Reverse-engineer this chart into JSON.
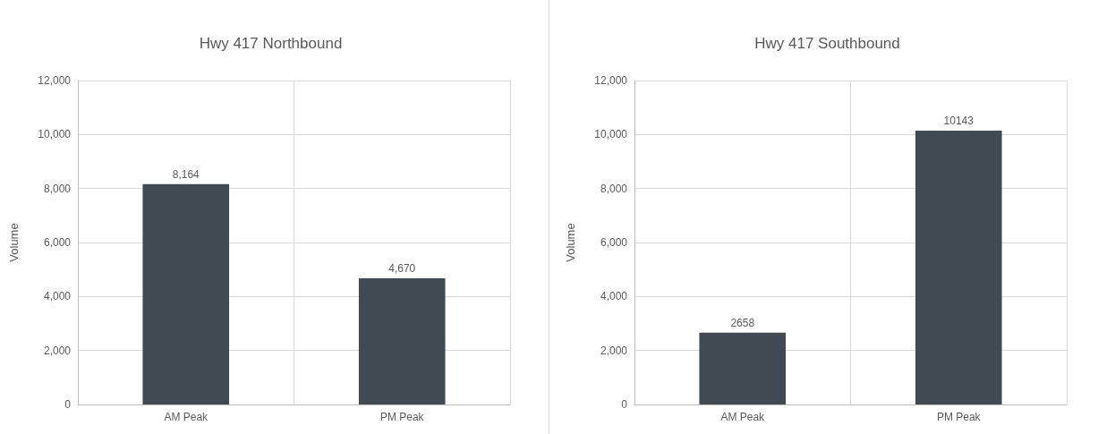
{
  "chart_data": [
    {
      "type": "bar",
      "title": "Hwy 417 Northbound",
      "ylabel": "Volume",
      "categories": [
        "AM Peak",
        "PM Peak"
      ],
      "values": [
        8164,
        4670
      ],
      "value_labels": [
        "8,164",
        "4,670"
      ],
      "color": "#414952",
      "ylim": [
        0,
        12000
      ],
      "yticks": [
        0,
        {
          "value": 2000,
          "label": "2,000"
        },
        {
          "value": 4000,
          "label": "4,000"
        },
        {
          "value": 6000,
          "label": "6,000"
        },
        {
          "value": 8000,
          "label": "8,000"
        },
        {
          "value": 10000,
          "label": "10,000"
        },
        {
          "value": 12000,
          "label": "12,000"
        }
      ],
      "grid": true
    },
    {
      "type": "bar",
      "title": "Hwy 417 Southbound",
      "ylabel": "Volume",
      "categories": [
        "AM Peak",
        "PM Peak"
      ],
      "values": [
        2658,
        10143
      ],
      "value_labels": [
        "2658",
        "10143"
      ],
      "color": "#414952",
      "ylim": [
        0,
        12000
      ],
      "yticks": [
        0,
        {
          "value": 2000,
          "label": "2,000"
        },
        {
          "value": 4000,
          "label": "4,000"
        },
        {
          "value": 6000,
          "label": "6,000"
        },
        {
          "value": 8000,
          "label": "8,000"
        },
        {
          "value": 10000,
          "label": "10,000"
        },
        {
          "value": 12000,
          "label": "12,000"
        }
      ],
      "grid": true
    }
  ]
}
